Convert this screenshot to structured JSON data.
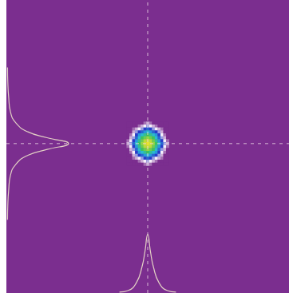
{
  "chart_data": {
    "type": "heatmap",
    "xlim": [
      0,
      100
    ],
    "ylim": [
      0,
      100
    ],
    "tick_labels": false,
    "grid": false,
    "color_range": [
      0,
      100
    ],
    "intensity": {
      "x": [
        43,
        44,
        45,
        46,
        47,
        48,
        49,
        50,
        51,
        52,
        53,
        54,
        55,
        56,
        57
      ],
      "y": [
        58,
        57,
        56,
        55,
        54,
        53,
        52,
        51,
        50,
        49,
        48,
        47,
        46,
        45,
        44
      ],
      "values": [
        [
          0,
          0,
          0,
          0,
          0,
          0,
          4,
          8,
          4,
          0,
          0,
          0,
          0,
          0,
          0
        ],
        [
          0,
          0,
          0,
          0,
          4,
          8,
          12,
          18,
          12,
          8,
          4,
          0,
          0,
          0,
          0
        ],
        [
          0,
          0,
          4,
          8,
          12,
          18,
          25,
          32,
          25,
          18,
          12,
          8,
          4,
          0,
          0
        ],
        [
          0,
          0,
          8,
          18,
          25,
          32,
          40,
          48,
          40,
          32,
          25,
          18,
          8,
          0,
          0
        ],
        [
          0,
          4,
          12,
          25,
          40,
          48,
          57,
          65,
          57,
          48,
          40,
          25,
          12,
          4,
          0
        ],
        [
          0,
          8,
          18,
          32,
          48,
          65,
          73,
          80,
          73,
          65,
          48,
          32,
          18,
          8,
          0
        ],
        [
          4,
          12,
          25,
          40,
          57,
          73,
          86,
          92,
          86,
          73,
          57,
          40,
          25,
          12,
          4
        ],
        [
          8,
          18,
          32,
          48,
          65,
          80,
          92,
          100,
          92,
          80,
          65,
          48,
          32,
          18,
          8
        ],
        [
          4,
          12,
          25,
          40,
          57,
          73,
          86,
          92,
          86,
          73,
          57,
          40,
          25,
          12,
          4
        ],
        [
          0,
          8,
          18,
          32,
          48,
          65,
          73,
          80,
          73,
          65,
          48,
          32,
          18,
          8,
          0
        ],
        [
          0,
          4,
          12,
          25,
          40,
          48,
          57,
          65,
          57,
          48,
          40,
          25,
          12,
          4,
          0
        ],
        [
          0,
          0,
          8,
          18,
          25,
          32,
          40,
          48,
          40,
          32,
          25,
          18,
          8,
          0,
          0
        ],
        [
          0,
          0,
          4,
          8,
          12,
          18,
          25,
          32,
          25,
          18,
          12,
          8,
          4,
          0,
          0
        ],
        [
          0,
          0,
          0,
          0,
          4,
          8,
          12,
          18,
          12,
          8,
          4,
          0,
          0,
          0,
          0
        ],
        [
          0,
          0,
          0,
          0,
          0,
          0,
          4,
          8,
          4,
          0,
          0,
          0,
          0,
          0,
          0
        ]
      ]
    },
    "crosshair": {
      "x": 50,
      "y": 51
    },
    "x_profile": {
      "x": [
        40,
        43,
        46,
        48,
        49,
        50,
        51,
        52,
        54,
        57,
        60
      ],
      "values": [
        0.3,
        0.8,
        3.5,
        9,
        14,
        20,
        14,
        9,
        3.5,
        0.8,
        0.3
      ],
      "color": "#e2cfc4"
    },
    "y_profile": {
      "y": [
        25,
        30,
        35,
        40,
        44,
        47,
        49,
        51,
        53,
        55,
        58,
        62,
        67,
        72,
        77
      ],
      "values": [
        0.4,
        0.5,
        0.8,
        1.4,
        3.4,
        7.6,
        14.4,
        22,
        14.4,
        7.6,
        3.4,
        1.4,
        0.8,
        0.5,
        0.4
      ],
      "color": "#e2cfc4"
    }
  }
}
